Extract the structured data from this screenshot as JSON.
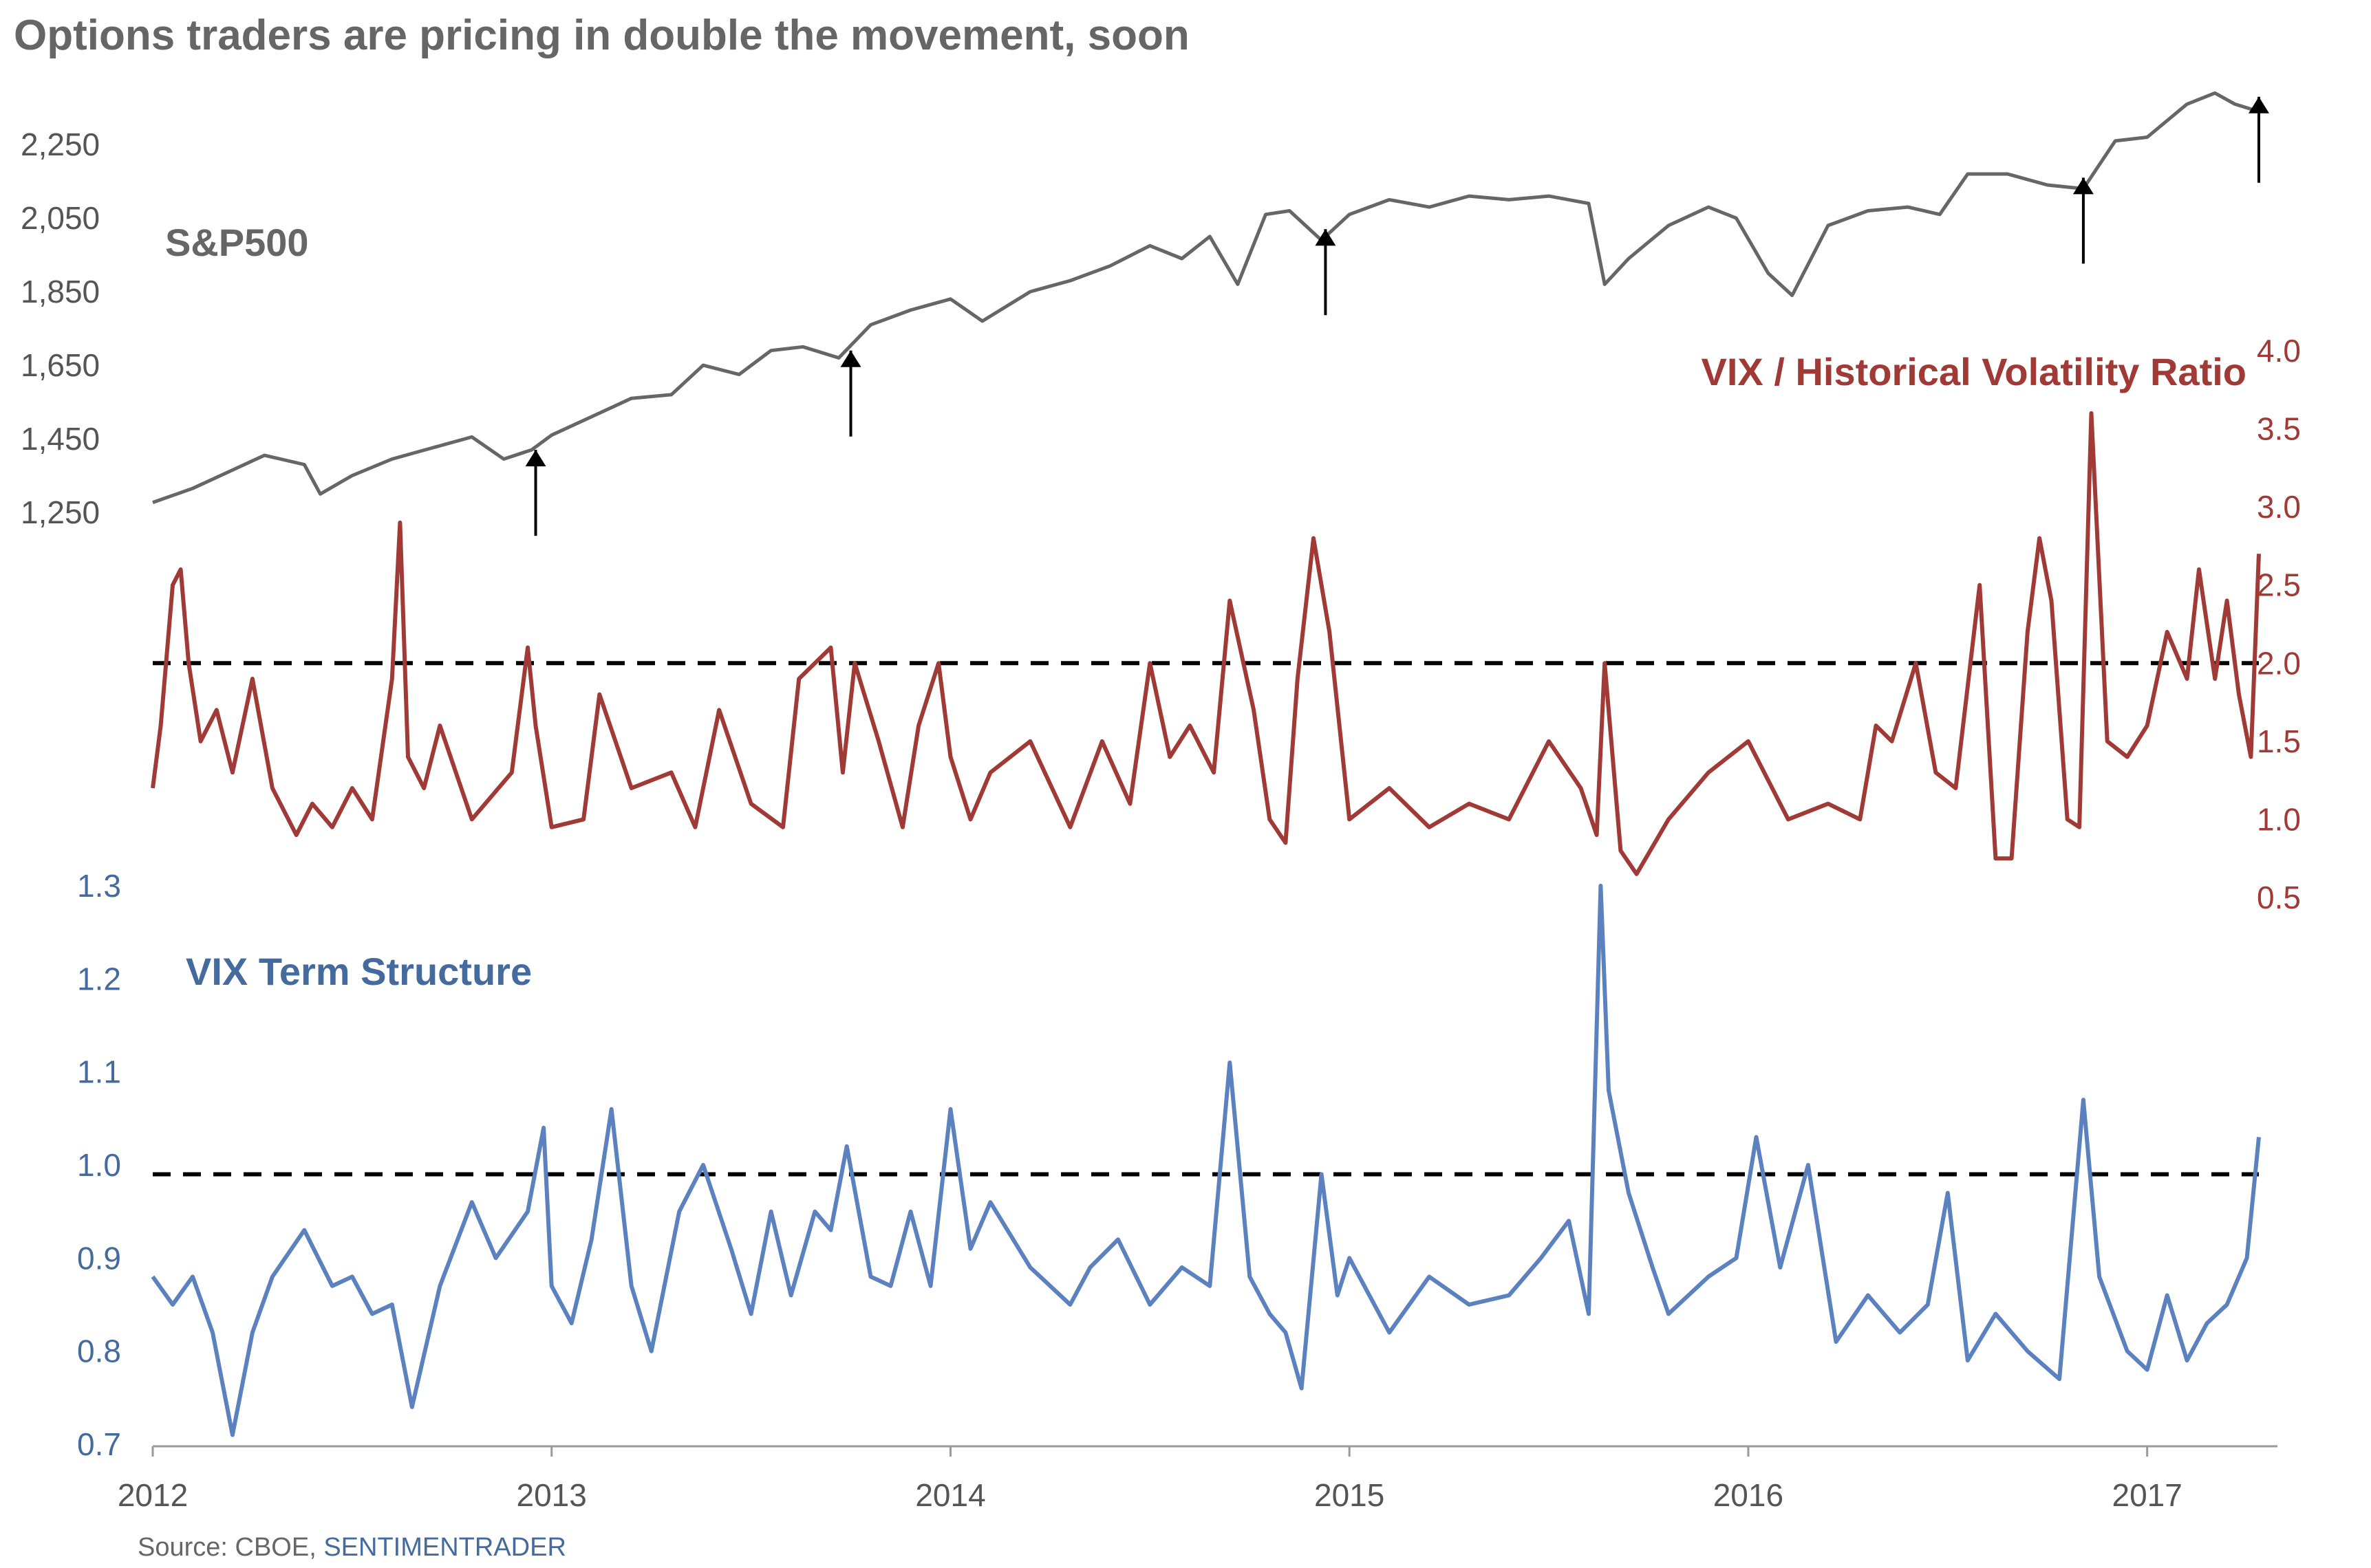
{
  "title": "Options traders are pricing in double the movement, soon",
  "source": {
    "prefix": "Source: CBOE, ",
    "link": "SENTIMENTRADER"
  },
  "colors": {
    "sp500": "#666666",
    "ratio": "#a03a36",
    "term": "#5b82bf",
    "reference": "#000000",
    "axis": "#999999"
  },
  "chart_data": [
    {
      "type": "line",
      "name": "S&P500",
      "label": "S&P500",
      "ylim": [
        1250,
        2400
      ],
      "yticks": [
        1250,
        1450,
        1650,
        1850,
        2050,
        2250
      ],
      "ytick_labels": [
        "1,250",
        "1,450",
        "1,650",
        "1,850",
        "2,050",
        "2,250"
      ],
      "axis_side": "left",
      "x": [
        2012.0,
        2012.1,
        2012.2,
        2012.28,
        2012.38,
        2012.42,
        2012.5,
        2012.6,
        2012.7,
        2012.8,
        2012.88,
        2012.95,
        2013.0,
        2013.1,
        2013.2,
        2013.3,
        2013.38,
        2013.47,
        2013.55,
        2013.63,
        2013.72,
        2013.8,
        2013.9,
        2014.0,
        2014.08,
        2014.2,
        2014.3,
        2014.4,
        2014.5,
        2014.58,
        2014.65,
        2014.72,
        2014.79,
        2014.85,
        2014.93,
        2015.0,
        2015.1,
        2015.2,
        2015.3,
        2015.4,
        2015.5,
        2015.6,
        2015.64,
        2015.7,
        2015.8,
        2015.9,
        2015.97,
        2016.05,
        2016.11,
        2016.2,
        2016.3,
        2016.4,
        2016.48,
        2016.55,
        2016.65,
        2016.75,
        2016.84,
        2016.92,
        2017.0,
        2017.1,
        2017.17,
        2017.22,
        2017.28
      ],
      "values": [
        1277,
        1315,
        1365,
        1405,
        1380,
        1300,
        1350,
        1395,
        1425,
        1455,
        1395,
        1420,
        1460,
        1510,
        1560,
        1570,
        1650,
        1625,
        1690,
        1700,
        1670,
        1760,
        1800,
        1830,
        1770,
        1850,
        1880,
        1920,
        1975,
        1940,
        2000,
        1870,
        2060,
        2070,
        1990,
        2060,
        2100,
        2080,
        2110,
        2100,
        2110,
        2090,
        1870,
        1940,
        2030,
        2080,
        2050,
        1900,
        1840,
        2030,
        2070,
        2080,
        2060,
        2170,
        2170,
        2140,
        2130,
        2260,
        2270,
        2360,
        2390,
        2360,
        2340
      ],
      "markers": [
        {
          "x": 2012.96,
          "y": 1390
        },
        {
          "x": 2013.75,
          "y": 1660
        },
        {
          "x": 2014.94,
          "y": 1990
        },
        {
          "x": 2016.84,
          "y": 2130
        },
        {
          "x": 2017.28,
          "y": 2350
        }
      ]
    },
    {
      "type": "line",
      "name": "VIX / Historical Volatility Ratio",
      "label": "VIX / Historical Volatility Ratio",
      "ylim": [
        0.5,
        4.0
      ],
      "yticks": [
        0.5,
        1.0,
        1.5,
        2.0,
        2.5,
        3.0,
        3.5,
        4.0
      ],
      "ytick_labels": [
        "0.5",
        "1.0",
        "1.5",
        "2.0",
        "2.5",
        "3.0",
        "3.5",
        "4.0"
      ],
      "axis_side": "right",
      "reference_line": 2.0,
      "x": [
        2012.0,
        2012.02,
        2012.05,
        2012.07,
        2012.09,
        2012.12,
        2012.16,
        2012.2,
        2012.25,
        2012.3,
        2012.36,
        2012.4,
        2012.45,
        2012.5,
        2012.55,
        2012.6,
        2012.62,
        2012.64,
        2012.68,
        2012.72,
        2012.8,
        2012.9,
        2012.94,
        2012.96,
        2013.0,
        2013.08,
        2013.12,
        2013.2,
        2013.3,
        2013.36,
        2013.42,
        2013.5,
        2013.58,
        2013.62,
        2013.7,
        2013.73,
        2013.76,
        2013.82,
        2013.88,
        2013.92,
        2013.97,
        2014.0,
        2014.05,
        2014.1,
        2014.2,
        2014.3,
        2014.38,
        2014.45,
        2014.5,
        2014.55,
        2014.6,
        2014.66,
        2014.7,
        2014.76,
        2014.8,
        2014.84,
        2014.87,
        2014.91,
        2014.95,
        2015.0,
        2015.1,
        2015.2,
        2015.3,
        2015.4,
        2015.5,
        2015.58,
        2015.62,
        2015.64,
        2015.68,
        2015.72,
        2015.8,
        2015.9,
        2016.0,
        2016.1,
        2016.2,
        2016.28,
        2016.32,
        2016.36,
        2016.42,
        2016.47,
        2016.52,
        2016.58,
        2016.62,
        2016.66,
        2016.7,
        2016.73,
        2016.76,
        2016.8,
        2016.83,
        2016.86,
        2016.9,
        2016.95,
        2017.0,
        2017.05,
        2017.1,
        2017.13,
        2017.17,
        2017.2,
        2017.23,
        2017.26,
        2017.28
      ],
      "values": [
        1.2,
        1.6,
        2.5,
        2.6,
        2.0,
        1.5,
        1.7,
        1.3,
        1.9,
        1.2,
        0.9,
        1.1,
        0.95,
        1.2,
        1.0,
        1.9,
        2.9,
        1.4,
        1.2,
        1.6,
        1.0,
        1.3,
        2.1,
        1.6,
        0.95,
        1.0,
        1.8,
        1.2,
        1.3,
        0.95,
        1.7,
        1.1,
        0.95,
        1.9,
        2.1,
        1.3,
        2.0,
        1.5,
        0.95,
        1.6,
        2.0,
        1.4,
        1.0,
        1.3,
        1.5,
        0.95,
        1.5,
        1.1,
        2.0,
        1.4,
        1.6,
        1.3,
        2.4,
        1.7,
        1.0,
        0.85,
        1.9,
        2.8,
        2.2,
        1.0,
        1.2,
        0.95,
        1.1,
        1.0,
        1.5,
        1.2,
        0.9,
        2.0,
        0.8,
        0.65,
        1.0,
        1.3,
        1.5,
        1.0,
        1.1,
        1.0,
        1.6,
        1.5,
        2.0,
        1.3,
        1.2,
        2.5,
        0.75,
        0.75,
        2.2,
        2.8,
        2.4,
        1.0,
        0.95,
        3.6,
        1.5,
        1.4,
        1.6,
        2.2,
        1.9,
        2.6,
        1.9,
        2.4,
        1.8,
        1.4,
        2.7
      ]
    },
    {
      "type": "line",
      "name": "VIX Term Structure",
      "label": "VIX Term Structure",
      "ylim": [
        0.7,
        1.3
      ],
      "yticks": [
        0.7,
        0.8,
        0.9,
        1.0,
        1.1,
        1.2,
        1.3
      ],
      "ytick_labels": [
        "0.7",
        "0.8",
        "0.9",
        "1.0",
        "1.1",
        "1.2",
        "1.3"
      ],
      "axis_side": "left",
      "reference_line": 0.99,
      "x": [
        2012.0,
        2012.05,
        2012.1,
        2012.15,
        2012.2,
        2012.25,
        2012.3,
        2012.38,
        2012.45,
        2012.5,
        2012.55,
        2012.6,
        2012.65,
        2012.72,
        2012.8,
        2012.86,
        2012.94,
        2012.98,
        2013.0,
        2013.05,
        2013.1,
        2013.15,
        2013.2,
        2013.25,
        2013.32,
        2013.38,
        2013.45,
        2013.5,
        2013.55,
        2013.6,
        2013.66,
        2013.7,
        2013.74,
        2013.8,
        2013.85,
        2013.9,
        2013.95,
        2014.0,
        2014.05,
        2014.1,
        2014.2,
        2014.3,
        2014.35,
        2014.42,
        2014.5,
        2014.58,
        2014.65,
        2014.7,
        2014.75,
        2014.8,
        2014.84,
        2014.88,
        2014.93,
        2014.97,
        2015.0,
        2015.1,
        2015.2,
        2015.3,
        2015.4,
        2015.48,
        2015.55,
        2015.6,
        2015.63,
        2015.65,
        2015.7,
        2015.76,
        2015.8,
        2015.9,
        2015.97,
        2016.02,
        2016.08,
        2016.15,
        2016.22,
        2016.3,
        2016.38,
        2016.45,
        2016.5,
        2016.55,
        2016.62,
        2016.7,
        2016.78,
        2016.84,
        2016.88,
        2016.95,
        2017.0,
        2017.05,
        2017.1,
        2017.15,
        2017.2,
        2017.25,
        2017.28
      ],
      "values": [
        0.88,
        0.85,
        0.88,
        0.82,
        0.71,
        0.82,
        0.88,
        0.93,
        0.87,
        0.88,
        0.84,
        0.85,
        0.74,
        0.87,
        0.96,
        0.9,
        0.95,
        1.04,
        0.87,
        0.83,
        0.92,
        1.06,
        0.87,
        0.8,
        0.95,
        1.0,
        0.91,
        0.84,
        0.95,
        0.86,
        0.95,
        0.93,
        1.02,
        0.88,
        0.87,
        0.95,
        0.87,
        1.06,
        0.91,
        0.96,
        0.89,
        0.85,
        0.89,
        0.92,
        0.85,
        0.89,
        0.87,
        1.11,
        0.88,
        0.84,
        0.82,
        0.76,
        0.99,
        0.86,
        0.9,
        0.82,
        0.88,
        0.85,
        0.86,
        0.9,
        0.94,
        0.84,
        1.3,
        1.08,
        0.97,
        0.89,
        0.84,
        0.88,
        0.9,
        1.03,
        0.89,
        1.0,
        0.81,
        0.86,
        0.82,
        0.85,
        0.97,
        0.79,
        0.84,
        0.8,
        0.77,
        1.07,
        0.88,
        0.8,
        0.78,
        0.86,
        0.79,
        0.83,
        0.85,
        0.9,
        1.03
      ],
      "xticks": [
        2012,
        2013,
        2014,
        2015,
        2016,
        2017
      ],
      "xtick_labels": [
        "2012",
        "2013",
        "2014",
        "2015",
        "2016",
        "2017"
      ]
    }
  ]
}
